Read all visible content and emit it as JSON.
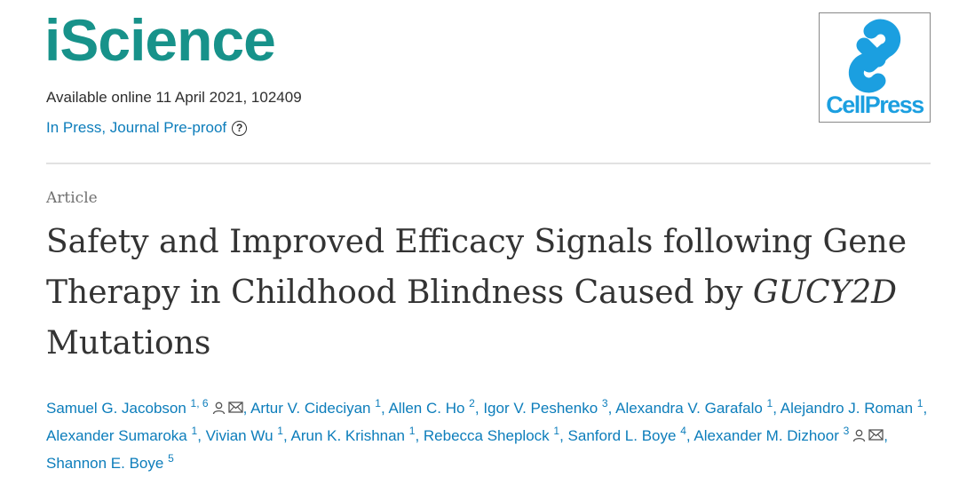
{
  "journal": {
    "name": "iScience",
    "available": "Available online 11 April 2021, 102409",
    "status": "In Press, Journal Pre-proof",
    "help_glyph": "?"
  },
  "publisher": {
    "name": "CellPress"
  },
  "article": {
    "type": "Article",
    "title_text": "Safety and Improved Efficacy Signals following Gene Therapy in Childhood Blindness Caused by",
    "title_gene": "GUCY2D",
    "title_end": "Mutations"
  },
  "authors": [
    {
      "name": "Samuel G. Jacobson",
      "sup": "1, 6",
      "corresponding": true,
      "sep": ", "
    },
    {
      "name": "Artur V. Cideciyan",
      "sup": "1",
      "corresponding": false,
      "sep": ", "
    },
    {
      "name": "Allen C. Ho",
      "sup": "2",
      "corresponding": false,
      "sep": ", "
    },
    {
      "name": "Igor V. Peshenko",
      "sup": "3",
      "corresponding": false,
      "sep": ", "
    },
    {
      "name": "Alexandra V. Garafalo",
      "sup": "1",
      "corresponding": false,
      "sep": ", "
    },
    {
      "name": "Alejandro J. Roman",
      "sup": "1",
      "corresponding": false,
      "sep": ", "
    },
    {
      "name": "Alexander Sumaroka",
      "sup": "1",
      "corresponding": false,
      "sep": ", "
    },
    {
      "name": "Vivian Wu",
      "sup": "1",
      "corresponding": false,
      "sep": ", "
    },
    {
      "name": "Arun K. Krishnan",
      "sup": "1",
      "corresponding": false,
      "sep": ", "
    },
    {
      "name": "Rebecca Sheplock",
      "sup": "1",
      "corresponding": false,
      "sep": ", "
    },
    {
      "name": "Sanford L. Boye",
      "sup": "4",
      "corresponding": false,
      "sep": ", "
    },
    {
      "name": "Alexander M. Dizhoor",
      "sup": "3",
      "corresponding": true,
      "sep": ", "
    },
    {
      "name": "Shannon E. Boye",
      "sup": "5",
      "corresponding": false,
      "sep": ""
    }
  ],
  "colors": {
    "brand": "#17928a",
    "link": "#0c7dbb",
    "cellpress": "#1b9fe0"
  },
  "icons": {
    "person": "person-icon",
    "mail": "mail-icon"
  }
}
